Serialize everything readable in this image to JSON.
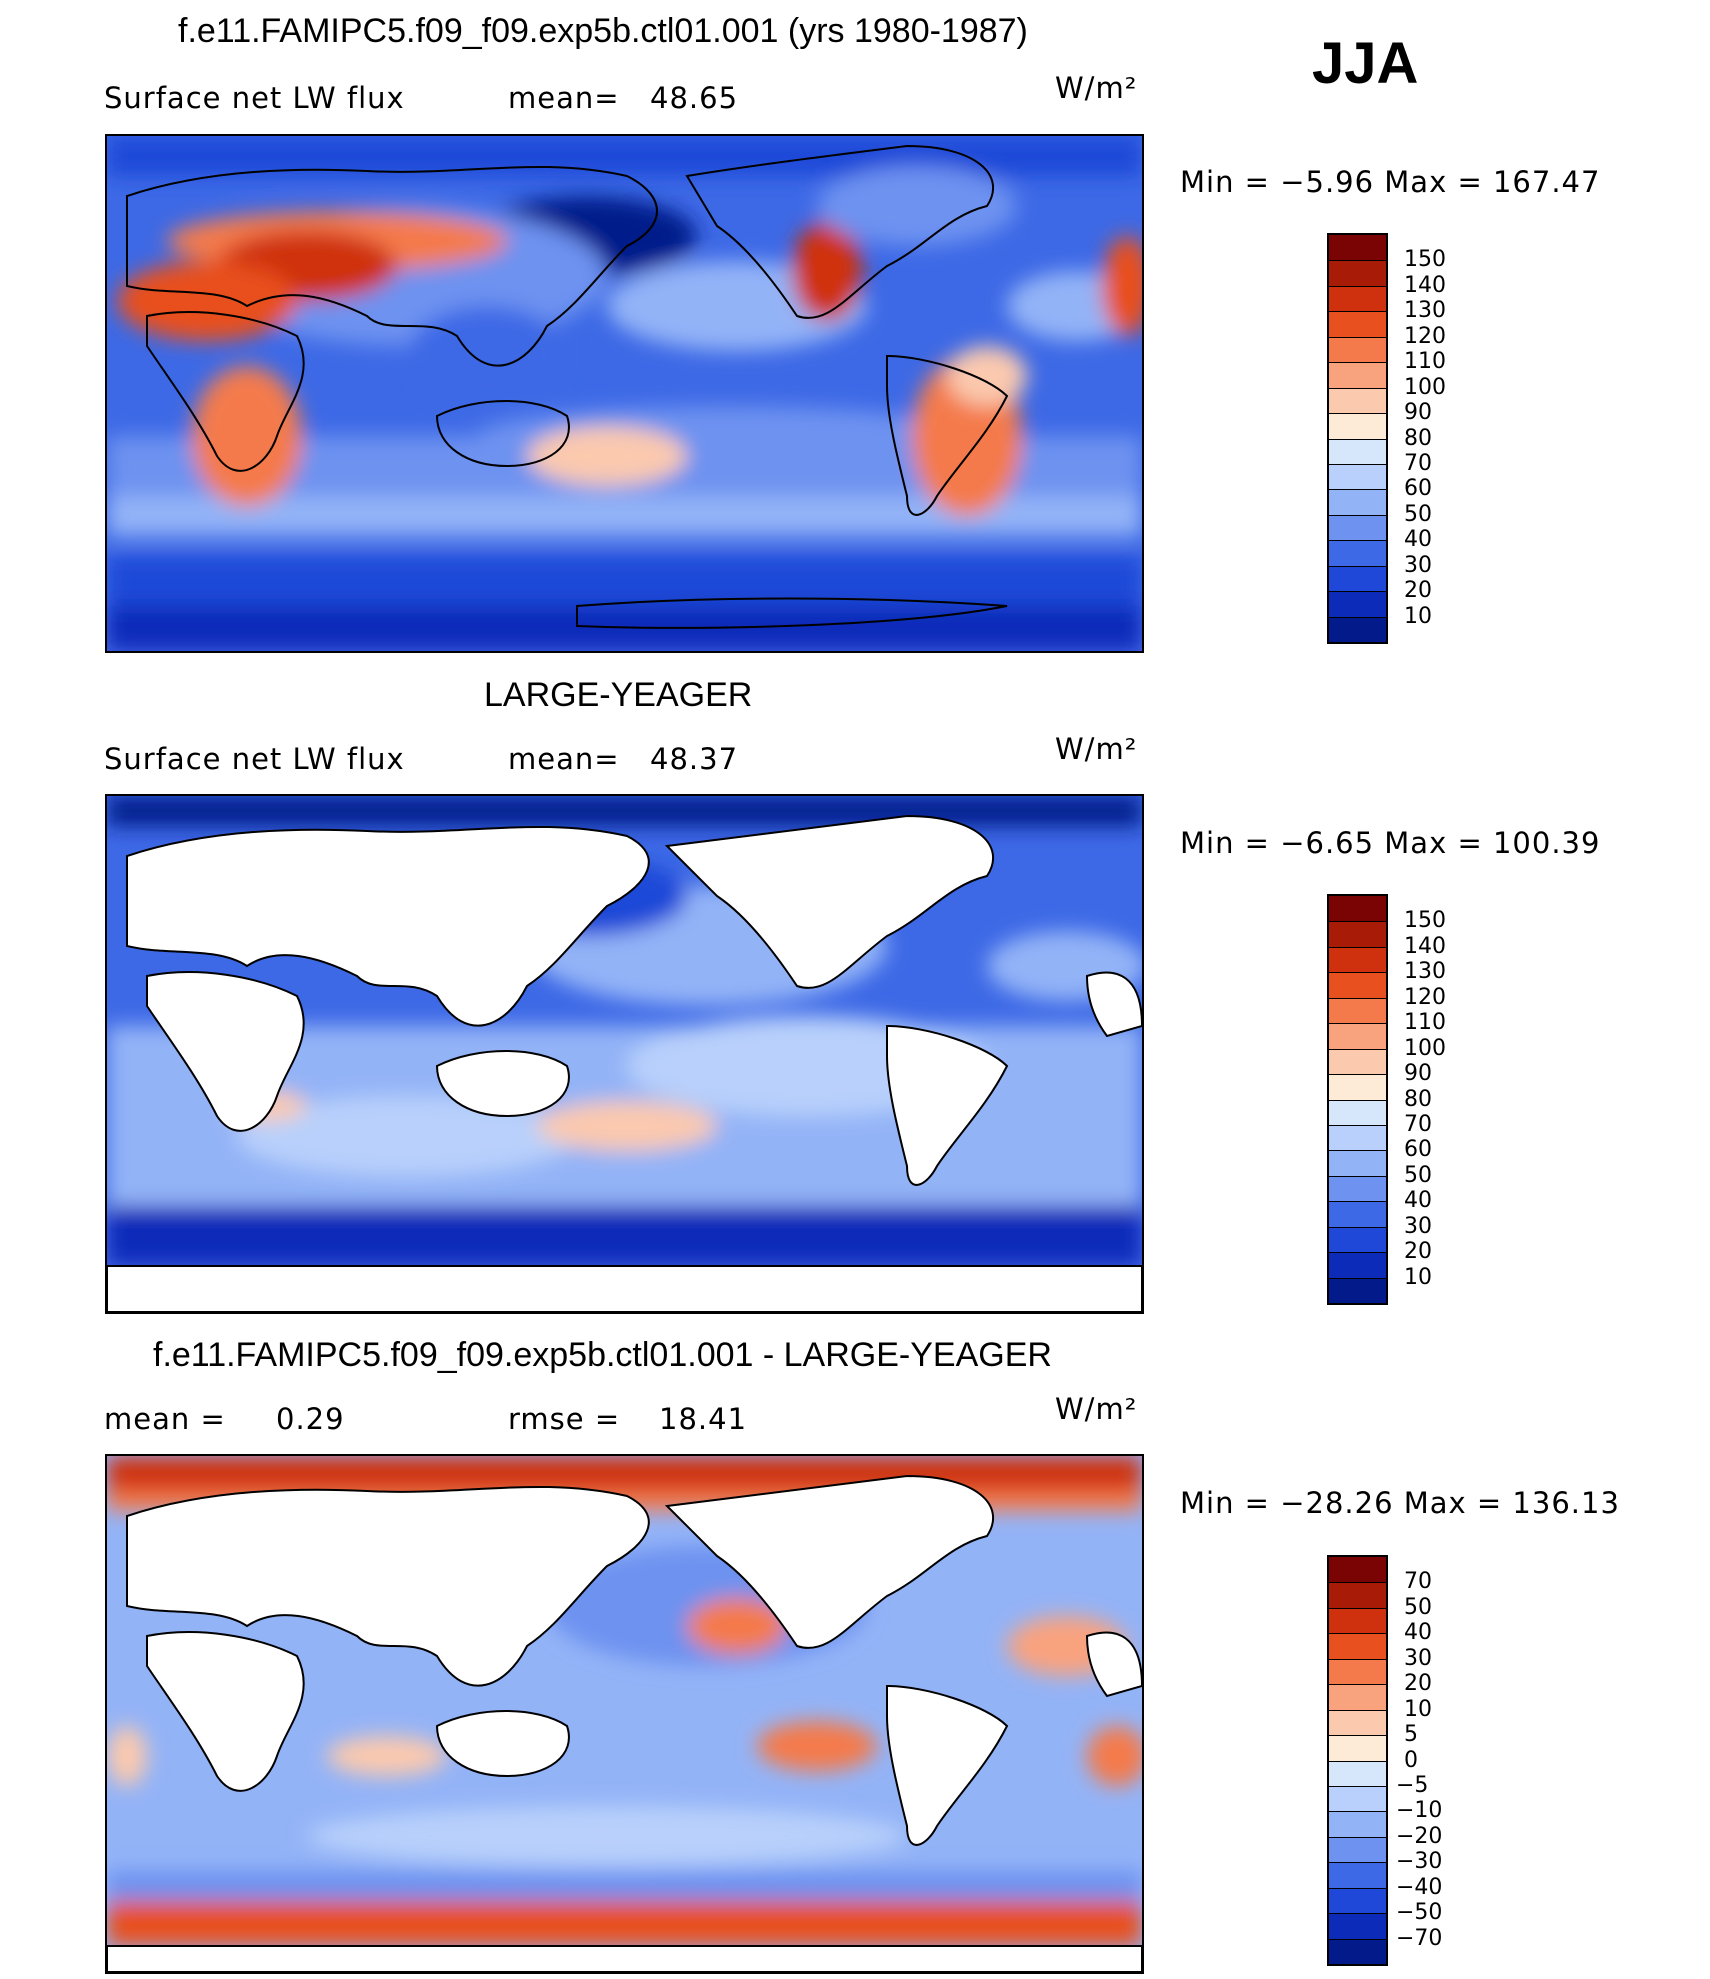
{
  "season": "JJA",
  "units": "W/m²",
  "panels": [
    {
      "title": "f.e11.FAMIPC5.f09_f09.exp5b.ctl01.001 (yrs 1980-1987)",
      "left_label": "Surface net LW flux",
      "mid_label": "mean=",
      "mid_value": "48.65",
      "minmax_text": "Min =   −5.96 Max = 167.47",
      "legend_ticks": [
        "150",
        "140",
        "130",
        "120",
        "110",
        "100",
        "90",
        "80",
        "70",
        "60",
        "50",
        "40",
        "30",
        "20",
        "10"
      ],
      "legend_colors": [
        "#7a0403",
        "#a81c07",
        "#cf300e",
        "#e8501f",
        "#f47a4c",
        "#f9a27e",
        "#fbc9ae",
        "#fdebd8",
        "#d6e6fb",
        "#b8d0fb",
        "#93b3f7",
        "#6d92f0",
        "#3d69e6",
        "#1f48d8",
        "#0c2bb9",
        "#031a8a"
      ]
    },
    {
      "title": "LARGE-YEAGER",
      "left_label": "Surface net LW flux",
      "mid_label": "mean=",
      "mid_value": "48.37",
      "minmax_text": "Min =   −6.65 Max = 100.39",
      "legend_ticks": [
        "150",
        "140",
        "130",
        "120",
        "110",
        "100",
        "90",
        "80",
        "70",
        "60",
        "50",
        "40",
        "30",
        "20",
        "10"
      ],
      "legend_colors": [
        "#7a0403",
        "#a81c07",
        "#cf300e",
        "#e8501f",
        "#f47a4c",
        "#f9a27e",
        "#fbc9ae",
        "#fdebd8",
        "#d6e6fb",
        "#b8d0fb",
        "#93b3f7",
        "#6d92f0",
        "#3d69e6",
        "#1f48d8",
        "#0c2bb9",
        "#031a8a"
      ]
    },
    {
      "title": "f.e11.FAMIPC5.f09_f09.exp5b.ctl01.001 - LARGE-YEAGER",
      "left_label": "mean =",
      "left_value": "0.29",
      "mid_label": "rmse =",
      "mid_value": "18.41",
      "minmax_text": "Min = −28.26 Max = 136.13",
      "legend_ticks": [
        "70",
        "50",
        "40",
        "30",
        "20",
        "10",
        "5",
        "0",
        "−5",
        "−10",
        "−20",
        "−30",
        "−40",
        "−50",
        "−70"
      ],
      "legend_colors": [
        "#7a0403",
        "#a81c07",
        "#cf300e",
        "#e8501f",
        "#f47a4c",
        "#f9a27e",
        "#fbc9ae",
        "#fdebd8",
        "#d6e6fb",
        "#b8d0fb",
        "#93b3f7",
        "#6d92f0",
        "#3d69e6",
        "#1f48d8",
        "#0c2bb9",
        "#031a8a"
      ]
    }
  ]
}
